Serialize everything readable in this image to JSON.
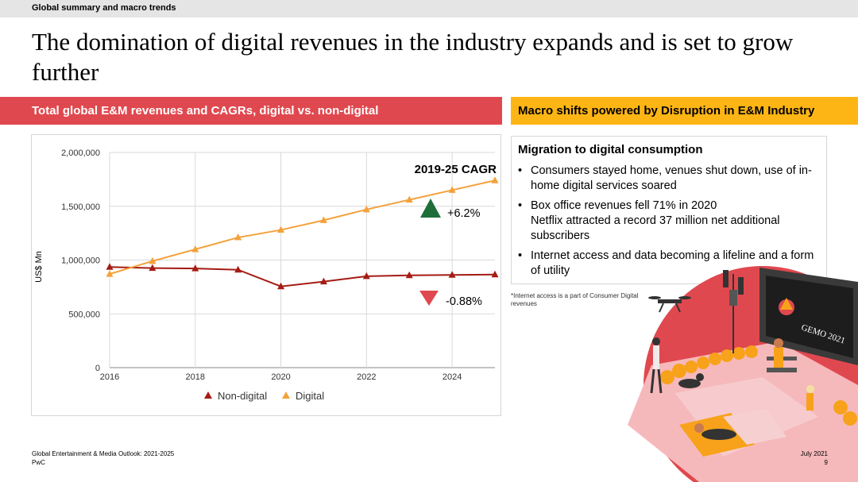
{
  "header": {
    "section": "Global summary and macro trends"
  },
  "title": "The domination of digital revenues in the industry expands and is set to grow further",
  "left_panel": {
    "heading": "Total global E&M revenues and CAGRs, digital vs. non-digital"
  },
  "right_panel": {
    "heading": "Macro shifts powered by Disruption in E&M Industry",
    "box_title": "Migration to digital consumption",
    "bullets": [
      {
        "lines": [
          "Consumers stayed home, venues shut down, use of in-home digital services soared"
        ]
      },
      {
        "lines": [
          "Box office revenues fell 71% in 2020",
          "Netflix attracted a record 37 million net additional subscribers"
        ]
      },
      {
        "lines": [
          "Internet access and data becoming a lifeline and a form of utility"
        ]
      }
    ],
    "footnote": "*Internet access is a part of Consumer Digital revenues",
    "illustration": {
      "sign_text": "GEMO 2021"
    }
  },
  "chart_data": {
    "type": "line",
    "ylabel": "US$ Mn",
    "xlabel": "",
    "ylim": [
      0,
      2000000
    ],
    "xlim": [
      2016,
      2025
    ],
    "y_ticks": [
      0,
      500000,
      1000000,
      1500000,
      2000000
    ],
    "y_tick_labels": [
      "0",
      "500,000",
      "1,000,000",
      "1,500,000",
      "2,000,000"
    ],
    "x_ticks": [
      2016,
      2018,
      2020,
      2022,
      2024
    ],
    "x_tick_labels": [
      "2016",
      "2018",
      "2020",
      "2022",
      "2024"
    ],
    "x": [
      2016,
      2017,
      2018,
      2019,
      2020,
      2021,
      2022,
      2023,
      2024,
      2025
    ],
    "series": [
      {
        "name": "Non-digital",
        "color": "#a51c14",
        "marker": "triangle",
        "values": [
          935000,
          925000,
          922000,
          910000,
          755000,
          800000,
          850000,
          858000,
          862000,
          865000
        ]
      },
      {
        "name": "Digital",
        "color": "#f4a13b",
        "marker": "triangle",
        "values": [
          870000,
          990000,
          1100000,
          1210000,
          1280000,
          1370000,
          1470000,
          1560000,
          1650000,
          1740000
        ]
      }
    ],
    "cagr_title": "2019-25 CAGR",
    "cagr": [
      {
        "label": "+6.2%",
        "direction": "up",
        "color": "#1e6e3a"
      },
      {
        "label": "-0.88%",
        "direction": "down",
        "color": "#e0484f"
      }
    ],
    "legend_position": "bottom",
    "grid": true
  },
  "footer": {
    "source": "Global Entertainment & Media Outlook: 2021-2025",
    "company": "PwC",
    "date": "July 2021",
    "page": "9"
  }
}
